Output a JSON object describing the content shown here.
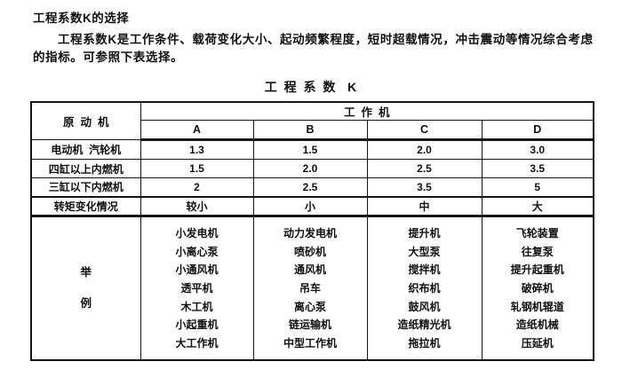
{
  "page": {
    "heading": "工程系数K的选择",
    "intro_lines": [
      "工程系数K是工作条件、载荷变化大小、起动频繁程度，短时超载情况，冲击震动等情况综合考虑",
      "的指标。可参照下表选择。"
    ],
    "table_title": "工 程 系 数  K"
  },
  "table": {
    "corner_header": "原  动  机",
    "group_header": "工  作  机",
    "col_headers": [
      "A",
      "B",
      "C",
      "D"
    ],
    "rows": [
      {
        "label": "电动机  汽轮机",
        "values": [
          "1.3",
          "1.5",
          "2.0",
          "3.0"
        ]
      },
      {
        "label": "四缸以上内燃机",
        "values": [
          "1.5",
          "2.0",
          "2.5",
          "3.5"
        ]
      },
      {
        "label": "三缸以下内燃机",
        "values": [
          "2",
          "2.5",
          "3.5",
          "5"
        ]
      },
      {
        "label": "转矩变化情况",
        "values": [
          "较小",
          "小",
          "中",
          "大"
        ]
      }
    ],
    "examples_label": [
      "举",
      "例"
    ],
    "example_columns": [
      [
        "小发电机",
        "小离心泵",
        "小通风机",
        "透平机",
        "木工机",
        "小起重机",
        "大工作机"
      ],
      [
        "动力发电机",
        "喷砂机",
        "通风机",
        "吊车",
        "离心泵",
        "链运输机",
        "中型工作机"
      ],
      [
        "提升机",
        "大型泵",
        "搅拌机",
        "织布机",
        "鼓风机",
        "造纸精光机",
        "拖拉机"
      ],
      [
        "飞轮装置",
        "往复泵",
        "提升起重机",
        "破碎机",
        "轧钢机辊道",
        "造纸机械",
        "压延机"
      ]
    ],
    "colors": {
      "text": "#101010",
      "border": "#141414",
      "background": "#ffffff"
    }
  }
}
